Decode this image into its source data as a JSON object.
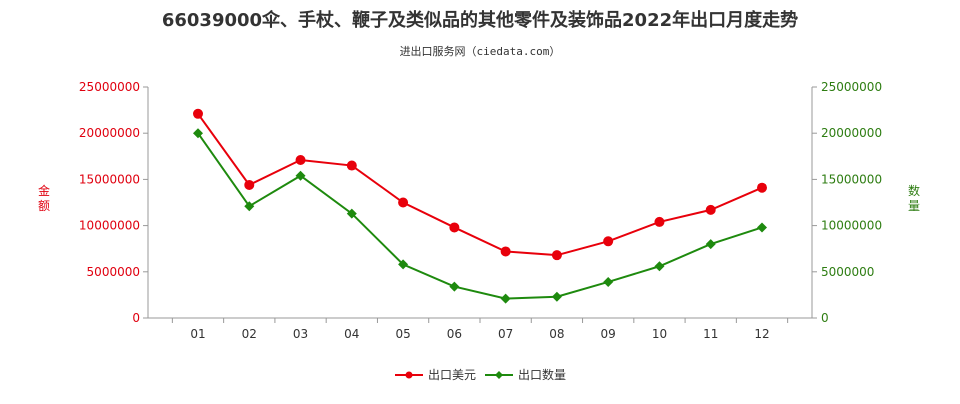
{
  "chart_data": {
    "type": "line",
    "title": "66039000伞、手杖、鞭子及类似品的其他零件及装饰品2022年出口月度走势",
    "subtitle": "进出口服务网（ciedata.com）",
    "categories": [
      "01",
      "02",
      "03",
      "04",
      "05",
      "06",
      "07",
      "08",
      "09",
      "10",
      "11",
      "12"
    ],
    "y_left": {
      "label": "金额",
      "ticks": [
        "0",
        "5000000",
        "10000000",
        "15000000",
        "20000000",
        "25000000"
      ],
      "range": [
        0,
        25000000
      ]
    },
    "y_right": {
      "label": "数量",
      "ticks": [
        "0",
        "5000000",
        "10000000",
        "15000000",
        "20000000",
        "25000000"
      ],
      "range": [
        0,
        25000000
      ]
    },
    "series": [
      {
        "name": "出口美元",
        "axis": "left",
        "color": "#e8000b",
        "marker": "circle",
        "values": [
          22100000,
          14400000,
          17100000,
          16500000,
          12500000,
          9800000,
          7200000,
          6800000,
          8300000,
          10400000,
          11700000,
          14100000
        ]
      },
      {
        "name": "出口数量",
        "axis": "right",
        "color": "#1e8a0e",
        "marker": "diamond",
        "values": [
          20000000,
          12100000,
          15400000,
          11300000,
          5800000,
          3400000,
          2100000,
          2300000,
          3900000,
          5600000,
          8000000,
          9800000
        ]
      }
    ],
    "legend_position": "bottom-center",
    "grid": false
  }
}
